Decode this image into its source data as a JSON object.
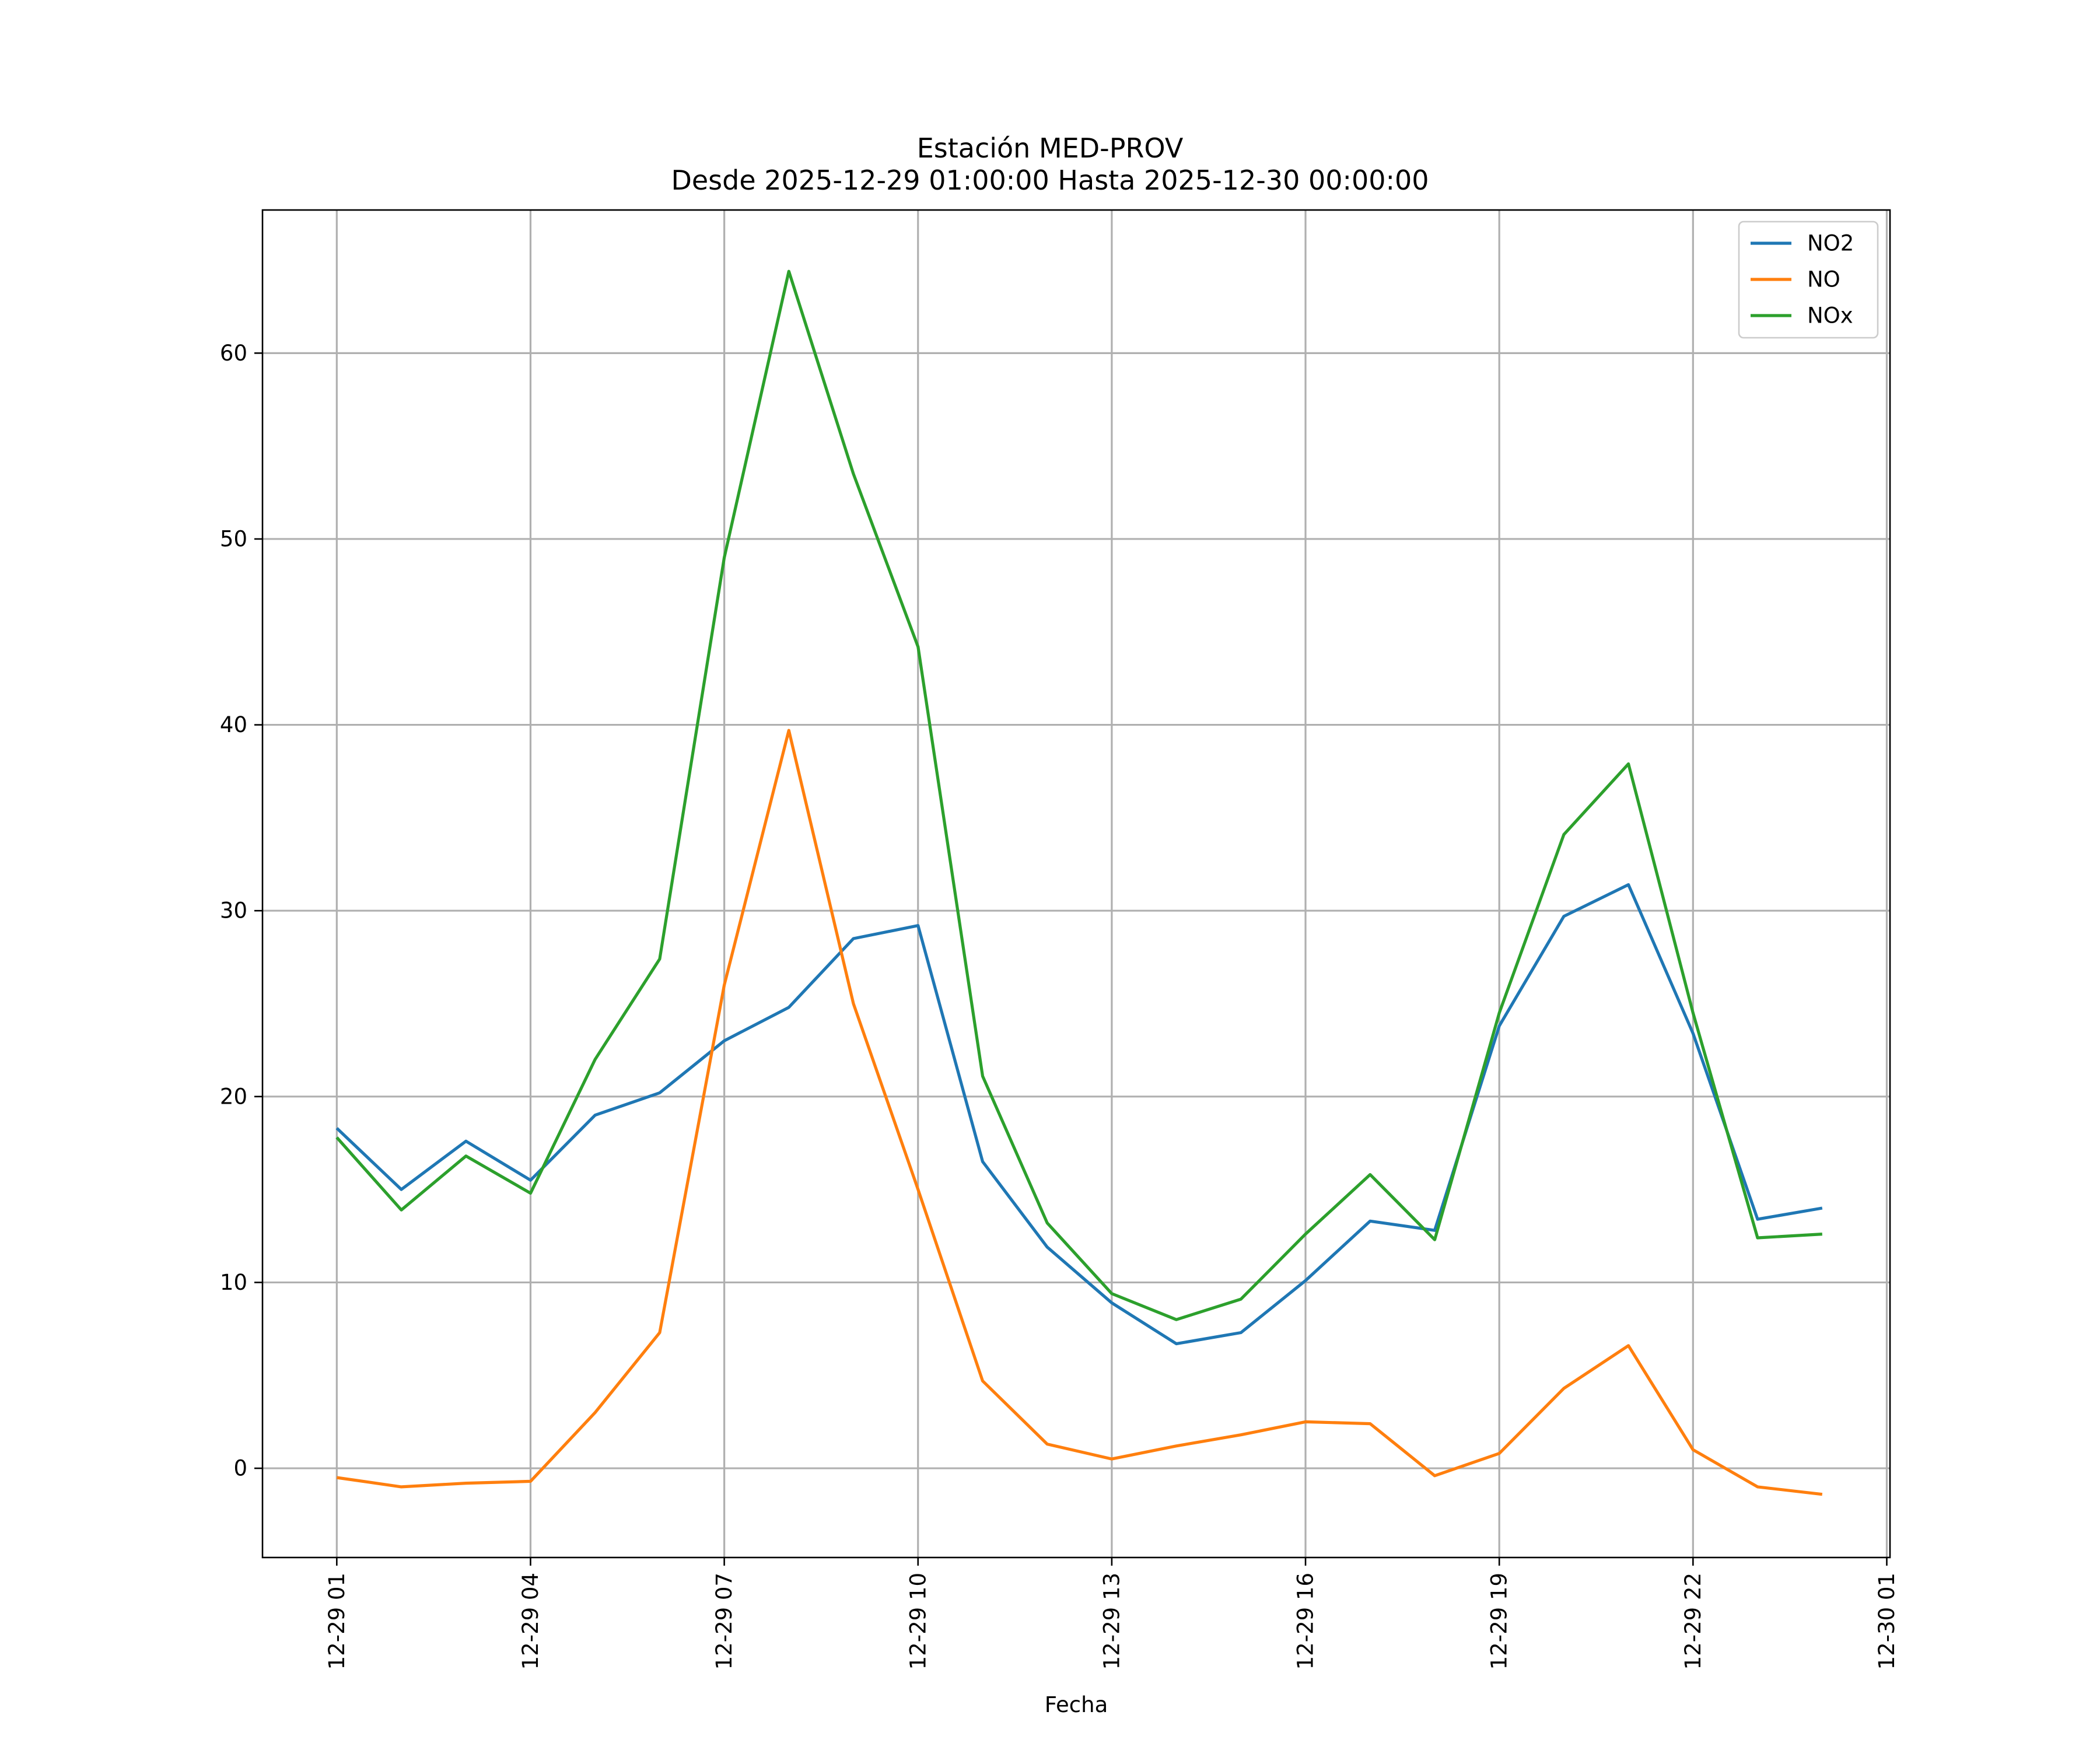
{
  "chart_data": {
    "type": "line",
    "title": "Estación MED-PROV",
    "subtitle": "Desde 2025-12-29 01:00:00 Hasta 2025-12-30 00:00:00",
    "xlabel": "Fecha",
    "ylabel": "",
    "x": [
      "12-29 01",
      "12-29 02",
      "12-29 03",
      "12-29 04",
      "12-29 05",
      "12-29 06",
      "12-29 07",
      "12-29 08",
      "12-29 09",
      "12-29 10",
      "12-29 11",
      "12-29 12",
      "12-29 13",
      "12-29 14",
      "12-29 15",
      "12-29 16",
      "12-29 17",
      "12-29 18",
      "12-29 19",
      "12-29 20",
      "12-29 21",
      "12-29 22",
      "12-29 23",
      "12-30 00"
    ],
    "x_hours": [
      1,
      2,
      3,
      4,
      5,
      6,
      7,
      8,
      9,
      10,
      11,
      12,
      13,
      14,
      15,
      16,
      17,
      18,
      19,
      20,
      21,
      22,
      23,
      24
    ],
    "xlim": [
      -0.15,
      25.05
    ],
    "x_ticks": [
      {
        "hour": 1,
        "label": "12-29 01"
      },
      {
        "hour": 4,
        "label": "12-29 04"
      },
      {
        "hour": 7,
        "label": "12-29 07"
      },
      {
        "hour": 10,
        "label": "12-29 10"
      },
      {
        "hour": 13,
        "label": "12-29 13"
      },
      {
        "hour": 16,
        "label": "12-29 16"
      },
      {
        "hour": 19,
        "label": "12-29 19"
      },
      {
        "hour": 22,
        "label": "12-29 22"
      },
      {
        "hour": 25,
        "label": "12-30 01"
      }
    ],
    "ylim": [
      -4.8,
      67.7
    ],
    "y_ticks": [
      {
        "value": 0,
        "label": "0"
      },
      {
        "value": 10,
        "label": "10"
      },
      {
        "value": 20,
        "label": "20"
      },
      {
        "value": 30,
        "label": "30"
      },
      {
        "value": 40,
        "label": "40"
      },
      {
        "value": 50,
        "label": "50"
      },
      {
        "value": 60,
        "label": "60"
      }
    ],
    "grid": true,
    "legend_position": "top-right",
    "series": [
      {
        "name": "NO2",
        "color": "#1f77b4",
        "values": [
          18.3,
          15.0,
          17.6,
          15.5,
          19.0,
          20.2,
          23.0,
          24.8,
          28.5,
          29.2,
          16.5,
          11.9,
          8.9,
          6.7,
          7.3,
          10.1,
          13.3,
          12.8,
          23.8,
          29.7,
          31.4,
          23.4,
          13.4,
          14.0
        ]
      },
      {
        "name": "NO",
        "color": "#ff7f0e",
        "values": [
          -0.5,
          -1.0,
          -0.8,
          -0.7,
          3.0,
          7.3,
          26.0,
          39.7,
          25.0,
          15.0,
          4.7,
          1.3,
          0.5,
          1.2,
          1.8,
          2.5,
          2.4,
          -0.4,
          0.8,
          4.3,
          6.6,
          1.0,
          -1.0,
          -1.4
        ]
      },
      {
        "name": "NOx",
        "color": "#2ca02c",
        "values": [
          17.8,
          13.9,
          16.8,
          14.8,
          22.0,
          27.4,
          49.0,
          64.4,
          53.5,
          44.2,
          21.1,
          13.2,
          9.4,
          8.0,
          9.1,
          12.6,
          15.8,
          12.3,
          24.5,
          34.1,
          37.9,
          24.5,
          12.4,
          12.6
        ]
      }
    ]
  }
}
